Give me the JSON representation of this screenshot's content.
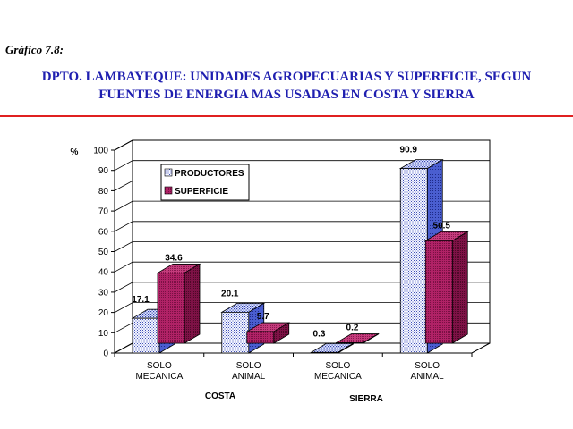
{
  "figure_label": "Gráfico 7.8:",
  "title_line1": "DPTO. LAMBAYEQUE: UNIDADES AGROPECUARIAS Y SUPERFICIE, SEGUN",
  "title_line2": "FUENTES DE ENERGIA MAS USADAS EN COSTA Y SIERRA",
  "chart_data": {
    "type": "bar",
    "title": "DPTO. LAMBAYEQUE: UNIDADES AGROPECUARIAS Y SUPERFICIE, SEGUN FUENTES DE ENERGIA MAS USADAS EN COSTA Y SIERRA",
    "ylabel": "%",
    "xlabel": "",
    "ylim": [
      0,
      100
    ],
    "yticks": [
      0,
      10,
      20,
      30,
      40,
      50,
      60,
      70,
      80,
      90,
      100
    ],
    "categories": [
      [
        "SOLO",
        "MECANICA"
      ],
      [
        "SOLO",
        "ANIMAL"
      ],
      [
        "SOLO",
        "MECANICA"
      ],
      [
        "SOLO",
        "ANIMAL"
      ]
    ],
    "groups": [
      {
        "label": "COSTA",
        "categories": [
          0,
          1
        ]
      },
      {
        "label": "SIERRA",
        "categories": [
          2,
          3
        ]
      }
    ],
    "series": [
      {
        "name": "PRODUCTORES",
        "values": [
          17.1,
          20.1,
          0.3,
          90.9
        ],
        "labels": [
          "17.1",
          "20.1",
          "0.3",
          "90.9"
        ],
        "color": "#c8d6f2",
        "side_color": "#3a3aa8"
      },
      {
        "name": "SUPERFICIE",
        "values": [
          34.6,
          5.7,
          0.2,
          50.5
        ],
        "labels": [
          "34.6",
          "5.7",
          "0.2",
          "50.5"
        ],
        "color": "#a31c5e",
        "side_color": "#6a0f3c"
      }
    ],
    "legend_position": "top-left",
    "grid": true,
    "style": "3d"
  }
}
